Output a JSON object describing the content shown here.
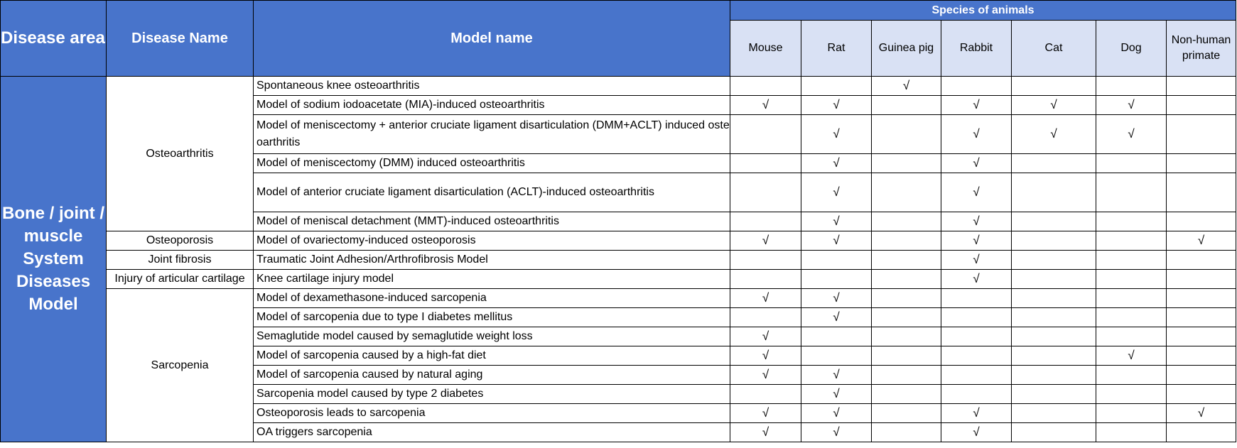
{
  "header": {
    "disease_areas": "Disease areas",
    "disease_name": "Disease Name",
    "model_name": "Model name",
    "species_title": "Species of animals",
    "species": [
      "Mouse",
      "Rat",
      "Guinea pig",
      "Rabbit",
      "Cat",
      "Dog",
      "Non-human primate"
    ]
  },
  "check_mark": "√",
  "colors": {
    "header_blue": "#4874CB",
    "species_header_bg": "#D9E1F4"
  },
  "disease_area": "Bone / joint / muscle System Diseases Model",
  "groups": [
    {
      "disease": "Osteoarthritis",
      "models": [
        {
          "name": "Spontaneous knee osteoarthritis",
          "species": [
            0,
            0,
            1,
            0,
            0,
            0,
            0
          ]
        },
        {
          "name": "Model of sodium iodoacetate (MIA)-induced osteoarthritis",
          "species": [
            1,
            1,
            0,
            1,
            1,
            1,
            0
          ]
        },
        {
          "name": "Model of meniscectomy + anterior cruciate ligament disarticulation (DMM+ACLT) induced osteoarthritis",
          "species": [
            0,
            1,
            0,
            1,
            1,
            1,
            0
          ],
          "double": true
        },
        {
          "name": "Model of meniscectomy (DMM) induced osteoarthritis",
          "species": [
            0,
            1,
            0,
            1,
            0,
            0,
            0
          ]
        },
        {
          "name": "Model of anterior cruciate ligament disarticulation (ACLT)-induced osteoarthritis",
          "species": [
            0,
            1,
            0,
            1,
            0,
            0,
            0
          ],
          "double": true
        },
        {
          "name": "Model of meniscal detachment (MMT)-induced osteoarthritis",
          "species": [
            0,
            1,
            0,
            1,
            0,
            0,
            0
          ]
        }
      ]
    },
    {
      "disease": "Osteoporosis",
      "models": [
        {
          "name": "Model of ovariectomy-induced osteoporosis",
          "species": [
            1,
            1,
            0,
            1,
            0,
            0,
            1
          ]
        }
      ]
    },
    {
      "disease": "Joint fibrosis",
      "models": [
        {
          "name": "Traumatic Joint Adhesion/Arthrofibrosis Model",
          "species": [
            0,
            0,
            0,
            1,
            0,
            0,
            0
          ]
        }
      ]
    },
    {
      "disease": "Injury of articular cartilage",
      "models": [
        {
          "name": "Knee cartilage injury model",
          "species": [
            0,
            0,
            0,
            1,
            0,
            0,
            0
          ]
        }
      ]
    },
    {
      "disease": "Sarcopenia",
      "models": [
        {
          "name": "Model of dexamethasone-induced sarcopenia",
          "species": [
            1,
            1,
            0,
            0,
            0,
            0,
            0
          ]
        },
        {
          "name": "Model of sarcopenia due to type I diabetes mellitus",
          "species": [
            0,
            1,
            0,
            0,
            0,
            0,
            0
          ]
        },
        {
          "name": "Semaglutide model caused by semaglutide weight loss",
          "species": [
            1,
            0,
            0,
            0,
            0,
            0,
            0
          ]
        },
        {
          "name": "Model of sarcopenia caused by a high-fat diet",
          "species": [
            1,
            0,
            0,
            0,
            0,
            1,
            0
          ]
        },
        {
          "name": "Model of  sarcopenia caused by natural aging",
          "species": [
            1,
            1,
            0,
            0,
            0,
            0,
            0
          ]
        },
        {
          "name": "Sarcopenia model caused by type 2 diabetes",
          "species": [
            0,
            1,
            0,
            0,
            0,
            0,
            0
          ]
        },
        {
          "name": "Osteoporosis leads to sarcopenia",
          "species": [
            1,
            1,
            0,
            1,
            0,
            0,
            1
          ]
        },
        {
          "name": "OA triggers sarcopenia",
          "species": [
            1,
            1,
            0,
            1,
            0,
            0,
            0
          ]
        }
      ]
    }
  ]
}
